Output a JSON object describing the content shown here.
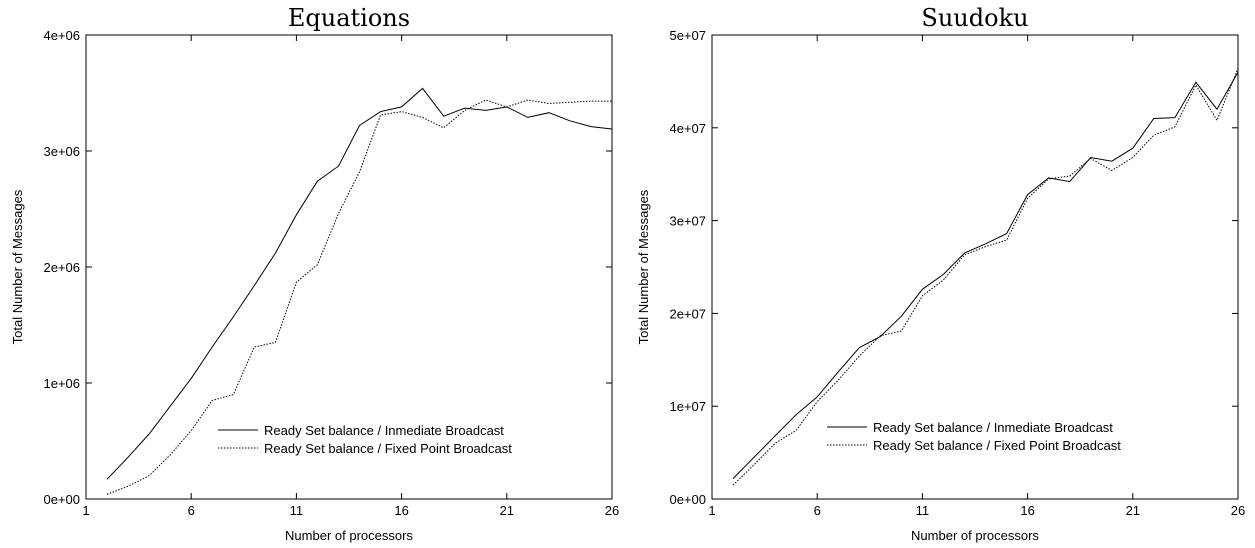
{
  "chart_data": [
    {
      "type": "line",
      "title": "Equations",
      "xlabel": "Number of processors",
      "ylabel": "Total Number of Messages",
      "xlim": [
        1,
        26
      ],
      "ylim": [
        0,
        4000000
      ],
      "x_ticks": [
        "1",
        "6",
        "11",
        "16",
        "21",
        "26"
      ],
      "y_ticks": [
        "0e+00",
        "1e+06",
        "2e+06",
        "3e+06",
        "4e+06"
      ],
      "legend_position": "lower-right",
      "x": [
        2,
        3,
        4,
        5,
        6,
        7,
        8,
        9,
        10,
        11,
        12,
        13,
        14,
        15,
        16,
        17,
        18,
        19,
        20,
        21,
        22,
        23,
        24,
        25,
        26
      ],
      "series": [
        {
          "name": "Ready Set balance / Inmediate Broadcast",
          "style": "solid",
          "values": [
            170000,
            360000,
            560000,
            800000,
            1040000,
            1310000,
            1570000,
            1840000,
            2120000,
            2450000,
            2740000,
            2870000,
            3220000,
            3340000,
            3380000,
            3540000,
            3300000,
            3370000,
            3350000,
            3380000,
            3290000,
            3330000,
            3260000,
            3210000,
            3190000
          ]
        },
        {
          "name": "Ready Set balance / Fixed Point Broadcast",
          "style": "dotted",
          "values": [
            40000,
            110000,
            200000,
            380000,
            590000,
            850000,
            900000,
            1310000,
            1350000,
            1870000,
            2020000,
            2460000,
            2820000,
            3310000,
            3340000,
            3290000,
            3200000,
            3350000,
            3440000,
            3380000,
            3440000,
            3410000,
            3420000,
            3430000,
            3430000
          ]
        }
      ]
    },
    {
      "type": "line",
      "title": "Suudoku",
      "xlabel": "Number of processors",
      "ylabel": "Total Number of Messages",
      "xlim": [
        1,
        26
      ],
      "ylim": [
        0,
        50000000
      ],
      "x_ticks": [
        "1",
        "6",
        "11",
        "16",
        "21",
        "26"
      ],
      "y_ticks": [
        "0e+00",
        "1e+07",
        "2e+07",
        "3e+07",
        "4e+07",
        "5e+07"
      ],
      "legend_position": "lower-right",
      "x": [
        2,
        3,
        4,
        5,
        6,
        7,
        8,
        9,
        10,
        11,
        12,
        13,
        14,
        15,
        16,
        17,
        18,
        19,
        20,
        21,
        22,
        23,
        24,
        25,
        26
      ],
      "series": [
        {
          "name": "Ready Set balance / Inmediate Broadcast",
          "style": "solid",
          "values": [
            2200000,
            4500000,
            6800000,
            9100000,
            11000000,
            13700000,
            16300000,
            17500000,
            19700000,
            22600000,
            24200000,
            26500000,
            27500000,
            28600000,
            32800000,
            34600000,
            34200000,
            36800000,
            36400000,
            37800000,
            41000000,
            41100000,
            44900000,
            42000000,
            46000000
          ]
        },
        {
          "name": "Ready Set balance / Fixed Point Broadcast",
          "style": "dotted",
          "values": [
            1500000,
            3700000,
            6000000,
            7400000,
            10500000,
            12800000,
            15400000,
            17600000,
            18100000,
            21900000,
            23600000,
            26300000,
            27200000,
            27900000,
            32400000,
            34500000,
            34800000,
            36700000,
            35400000,
            36800000,
            39200000,
            40100000,
            44600000,
            40800000,
            46400000
          ]
        }
      ]
    }
  ]
}
